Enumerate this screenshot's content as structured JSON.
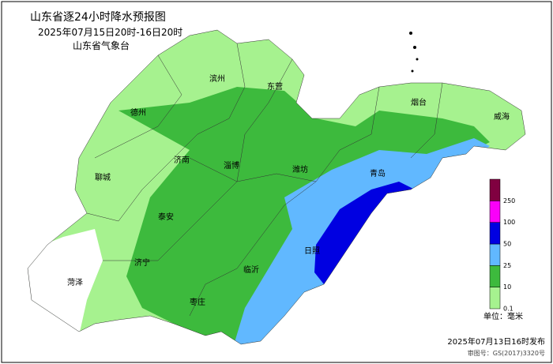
{
  "header": {
    "title": "山东省逐24小时降水预报图",
    "period": "2025年07月15日20时-16日20时",
    "issuer": "山东省气象台"
  },
  "cities": [
    "德州",
    "滨州",
    "东营",
    "烟台",
    "威海",
    "聊城",
    "济南",
    "淄博",
    "潍坊",
    "青岛",
    "泰安",
    "济宁",
    "菏泽",
    "枣庄",
    "临沂",
    "日照"
  ],
  "legend": {
    "thresholds": [
      0.1,
      10,
      25,
      50,
      100,
      250
    ],
    "colors": [
      "#a6f28f",
      "#3dba3d",
      "#61b8ff",
      "#0000e1",
      "#fa00fa",
      "#800040"
    ],
    "unit": "单位：毫米"
  },
  "footer": {
    "issued": "2025年07月13日16时发布",
    "map_number": "审图号：GS(2017)3320号"
  }
}
